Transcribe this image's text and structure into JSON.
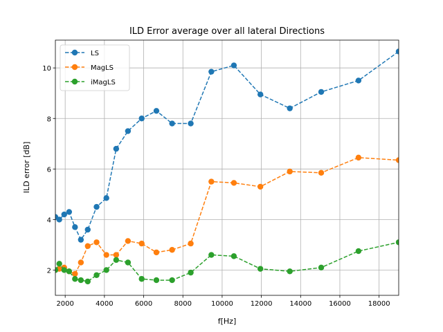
{
  "chart_data": {
    "type": "line",
    "title": "ILD Error average over all lateral Directions",
    "xlabel": "f[Hz]",
    "ylabel": "ILD error [dB]",
    "xlim": [
      1500,
      19000
    ],
    "ylim": [
      1.0,
      11.1
    ],
    "xticks": [
      2000,
      4000,
      6000,
      8000,
      10000,
      12000,
      14000,
      16000,
      18000
    ],
    "xtick_labels": [
      "2000",
      "4000",
      "6000",
      "8000",
      "10000",
      "12000",
      "14000",
      "16000",
      "18000"
    ],
    "yticks": [
      2,
      4,
      6,
      8,
      10
    ],
    "ytick_labels": [
      "2",
      "4",
      "6",
      "8",
      "10"
    ],
    "grid": true,
    "legend_position": "top-left",
    "x": [
      1500,
      1700,
      1950,
      2200,
      2500,
      2800,
      3150,
      3600,
      4100,
      4600,
      5200,
      5900,
      6650,
      7450,
      8400,
      9450,
      10600,
      11950,
      13450,
      15050,
      16950,
      19000
    ],
    "series": [
      {
        "name": "LS",
        "color": "#1f77b4",
        "values": [
          4.1,
          4.0,
          4.2,
          4.3,
          3.7,
          3.2,
          3.6,
          4.5,
          4.85,
          6.8,
          7.5,
          8.0,
          8.3,
          7.8,
          7.8,
          9.85,
          10.1,
          8.95,
          8.4,
          9.05,
          9.5,
          10.65
        ]
      },
      {
        "name": "MagLS",
        "color": "#ff7f0e",
        "values": [
          2.0,
          2.05,
          2.1,
          1.95,
          1.85,
          2.3,
          2.95,
          3.1,
          2.6,
          2.6,
          3.15,
          3.05,
          2.7,
          2.8,
          3.05,
          5.5,
          5.45,
          5.3,
          5.9,
          5.85,
          6.45,
          6.35
        ]
      },
      {
        "name": "iMagLS",
        "color": "#2ca02c",
        "values": [
          2.0,
          2.25,
          2.0,
          1.95,
          1.65,
          1.6,
          1.55,
          1.8,
          2.0,
          2.4,
          2.3,
          1.65,
          1.6,
          1.6,
          1.9,
          2.6,
          2.55,
          2.05,
          1.95,
          2.1,
          2.75,
          3.1
        ]
      }
    ]
  }
}
